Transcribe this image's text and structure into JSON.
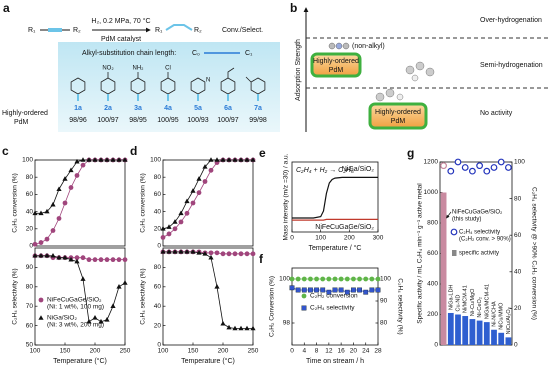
{
  "panel_a": {
    "panel": "a",
    "reactant": [
      "R₁",
      "R₂"
    ],
    "product": [
      "R₁",
      "R₂"
    ],
    "conditions": "H₂, 0.2 MPa, 70 °C",
    "catalyst": "PdM catalyst",
    "outcome": "Conv./Select.",
    "box_title": "Alkyl-substitution chain length:",
    "chain_lengths": [
      "C₀",
      "C₁"
    ],
    "row_label": [
      "Highly-ordered",
      "PdM"
    ],
    "compounds": [
      {
        "id": "1a",
        "result": "98/96"
      },
      {
        "id": "2a",
        "result": "100/97",
        "substituent": "NO₂"
      },
      {
        "id": "3a",
        "result": "98/95",
        "substituent": "NH₂"
      },
      {
        "id": "4a",
        "result": "100/95",
        "substituent": "Cl"
      },
      {
        "id": "5a",
        "result": "100/93",
        "ring_atom": "N"
      },
      {
        "id": "6a",
        "result": "100/97"
      },
      {
        "id": "7a",
        "result": "99/98"
      }
    ]
  },
  "panel_b": {
    "panel": "b",
    "ylabel": "Adsorption Strength",
    "regions": [
      "Over-hydrogenation",
      "Semi-hydrogenation",
      "No activity"
    ],
    "molecule_label": "(non-alkyl)",
    "catalysts": [
      [
        "Highly-ordered",
        "PdM"
      ],
      [
        "Highly-ordered",
        "PdM"
      ]
    ]
  },
  "chart_data": [
    {
      "panel": "c",
      "type": "line",
      "ylabel": "C₂H₂ conversion (%)",
      "xlim": [
        100,
        250
      ],
      "ylim": [
        0,
        100
      ],
      "yticks": [
        0,
        20,
        40,
        60,
        80,
        100
      ],
      "x": [
        100,
        110,
        120,
        130,
        140,
        150,
        160,
        170,
        180,
        190,
        200,
        210,
        220,
        230,
        240,
        250
      ],
      "series": [
        {
          "color": "#a0457c",
          "marker": "circle",
          "values": [
            2,
            4,
            8,
            18,
            32,
            50,
            68,
            82,
            94,
            100,
            100,
            100,
            100,
            100,
            100,
            100
          ]
        },
        {
          "color": "#111111",
          "marker": "triangle",
          "values": [
            38,
            38,
            40,
            48,
            66,
            78,
            88,
            98,
            100,
            100,
            100,
            100,
            100,
            100,
            100,
            100
          ]
        }
      ]
    },
    {
      "type": "line",
      "ylabel": "C₂H₄ selectivity (%)",
      "xlabel": "Temperature (°C)",
      "xlim": [
        100,
        250
      ],
      "xticks": [
        100,
        150,
        200,
        250
      ],
      "ylim": [
        50,
        100
      ],
      "yticks": [
        50,
        60,
        70,
        80,
        90
      ],
      "x": [
        100,
        110,
        120,
        130,
        140,
        150,
        160,
        170,
        180,
        190,
        200,
        210,
        220,
        230,
        240,
        250
      ],
      "series": [
        {
          "name": "NiFeCuGaGe/SiO₂",
          "note": "(Ni: 1 wt%, 100 mg)",
          "color": "#a0457c",
          "marker": "circle",
          "values": [
            96,
            96,
            96,
            95,
            95,
            95,
            95,
            95,
            95,
            94,
            94,
            94,
            94,
            94,
            94,
            94
          ]
        },
        {
          "name": "NiGa/SiO₂",
          "note": "(Ni: 3 wt%, 200 mg)",
          "color": "#111111",
          "marker": "triangle",
          "values": [
            96,
            96,
            96,
            96,
            95,
            95,
            94,
            93,
            84,
            62,
            64,
            62,
            63,
            70,
            80,
            82
          ]
        }
      ]
    },
    {
      "panel": "d",
      "type": "line",
      "ylabel": "C₂H₂ conversion (%)",
      "xlim": [
        100,
        250
      ],
      "ylim": [
        0,
        100
      ],
      "yticks": [
        0,
        20,
        40,
        60,
        80,
        100
      ],
      "x": [
        100,
        110,
        120,
        130,
        140,
        150,
        160,
        170,
        180,
        190,
        200,
        210,
        220,
        230,
        240,
        250
      ],
      "series": [
        {
          "color": "#a0457c",
          "marker": "circle",
          "values": [
            10,
            14,
            20,
            28,
            38,
            50,
            62,
            75,
            88,
            97,
            100,
            100,
            100,
            100,
            100,
            100
          ]
        },
        {
          "color": "#111111",
          "marker": "triangle",
          "values": [
            20,
            22,
            28,
            38,
            52,
            64,
            78,
            92,
            100,
            100,
            100,
            100,
            100,
            100,
            100,
            100
          ]
        }
      ]
    },
    {
      "type": "line",
      "ylabel": "C₂H₄ selectivity (%)",
      "xlabel": "Temperature (°C)",
      "xlim": [
        100,
        250
      ],
      "xticks": [
        100,
        150,
        200,
        250
      ],
      "ylim": [
        0,
        100
      ],
      "yticks": [
        0,
        20,
        40,
        60,
        80
      ],
      "x": [
        100,
        110,
        120,
        130,
        140,
        150,
        160,
        170,
        180,
        190,
        200,
        210,
        220,
        230,
        240,
        250
      ],
      "series": [
        {
          "color": "#a0457c",
          "marker": "circle",
          "values": [
            96,
            96,
            96,
            96,
            96,
            96,
            96,
            95,
            95,
            95,
            94,
            94,
            94,
            94,
            94,
            94
          ]
        },
        {
          "color": "#111111",
          "marker": "triangle",
          "values": [
            96,
            96,
            96,
            96,
            96,
            96,
            95,
            94,
            90,
            60,
            22,
            18,
            17,
            17,
            17,
            17
          ]
        }
      ]
    },
    {
      "panel": "e",
      "type": "line",
      "title": "C₂H₄ + H₂ → C₂H₆",
      "ylabel": "Mass intensity (m/z =30) / a.u.",
      "xlabel": "Temperature / °C",
      "xlim": [
        0,
        300
      ],
      "xticks": [
        0,
        100,
        200,
        300
      ],
      "ylim": [
        0,
        1
      ],
      "x": [
        0,
        25,
        50,
        75,
        100,
        110,
        120,
        130,
        140,
        150,
        175,
        200,
        250,
        300
      ],
      "series": [
        {
          "name": "NiGa/SiO₂",
          "color": "#111111",
          "values": [
            0.2,
            0.2,
            0.2,
            0.2,
            0.22,
            0.3,
            0.55,
            0.7,
            0.75,
            0.77,
            0.78,
            0.78,
            0.78,
            0.78
          ]
        },
        {
          "name": "NiFeCuGaGe/SiO₂",
          "color": "#c0392b",
          "values": [
            0.17,
            0.17,
            0.17,
            0.17,
            0.17,
            0.17,
            0.18,
            0.18,
            0.18,
            0.18,
            0.18,
            0.18,
            0.18,
            0.18
          ]
        }
      ]
    },
    {
      "panel": "f",
      "type": "line",
      "ylabel": "C₂H₂ Conversion (%)",
      "y2label": "C₂H₄ selectivity (%)",
      "xlabel": "Time on stream / h",
      "xlim": [
        0,
        28
      ],
      "xticks": [
        0,
        4,
        8,
        12,
        16,
        20,
        24,
        28
      ],
      "ylim": [
        97,
        100.5
      ],
      "yticks": [
        98,
        100
      ],
      "y2lim": [
        70,
        105
      ],
      "y2ticks": [
        80,
        90,
        100
      ],
      "x": [
        0,
        2,
        4,
        6,
        8,
        10,
        12,
        14,
        16,
        18,
        20,
        22,
        24,
        26,
        28
      ],
      "series": [
        {
          "name": "C₂H₂ conversion",
          "color": "#5fb548",
          "marker": "circle",
          "values": [
            100,
            100,
            100,
            100,
            100,
            100,
            100,
            100,
            100,
            100,
            100,
            100,
            100,
            100,
            100
          ]
        },
        {
          "name": "C₂H₄ selectivity",
          "axis": "y2",
          "color": "#3355cc",
          "marker": "square",
          "values": [
            96,
            95,
            95,
            95,
            95,
            95,
            94,
            95,
            95,
            94,
            95,
            95,
            94,
            95,
            95
          ]
        }
      ]
    },
    {
      "panel": "g",
      "type": "bar",
      "ylabel": "Specific activity / mL C₂H₄ min⁻¹ g⁻¹ active metal",
      "y2label": "C₂H₄ selectivity @ >90% C₂H₂ conversion (%)",
      "categories": [
        null,
        "NiGa-LDH",
        "Cu-ND",
        "Ni/MCM-41",
        "Ni-Cu/MgO",
        "Ni-CeO₂",
        "NiGa/MCM-41",
        "Ni-Ni/CHA",
        "NiCu/MMO",
        "NiCu/Al₂O₃"
      ],
      "bar_colors": [
        "#c98aa0",
        "#2f5fd0",
        "#2f5fd0",
        "#2f5fd0",
        "#2f5fd0",
        "#2f5fd0",
        "#2f5fd0",
        "#2f5fd0",
        "#2f5fd0",
        "#2f5fd0"
      ],
      "ylim": [
        0,
        1200
      ],
      "yticks": [
        0,
        200,
        400,
        600,
        800,
        1000,
        1200
      ],
      "y2lim": [
        0,
        100
      ],
      "y2ticks": [
        0,
        20,
        40,
        60,
        80,
        100
      ],
      "annotation": [
        "NiFeCuGaGe/SiO₂",
        "(this study)"
      ],
      "series": [
        {
          "name": "specific activity",
          "color": "#888888",
          "values": [
            1000,
            210,
            200,
            190,
            170,
            160,
            150,
            100,
            80,
            50
          ]
        },
        {
          "name": "C₂H₄ selectivity",
          "note": "(C₂H₂ conv. > 90%)",
          "axis": "y2",
          "color": "#2233bb",
          "marker": "open-circle",
          "values": [
            98,
            95,
            100,
            97,
            95,
            98,
            95,
            97,
            100,
            97
          ]
        }
      ]
    }
  ]
}
